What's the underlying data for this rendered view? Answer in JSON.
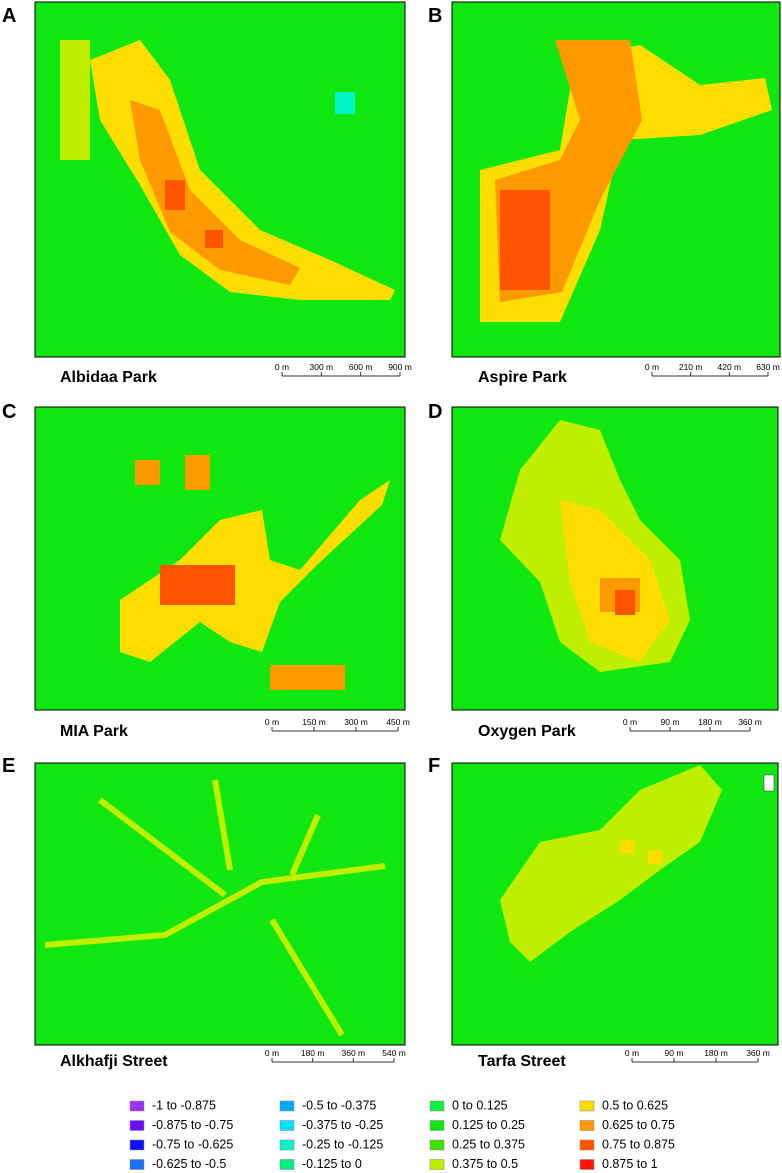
{
  "panels": [
    {
      "letter": "A",
      "name": "Albidaa Park",
      "scale": [
        "0 m",
        "300 m",
        "600 m",
        "900 m"
      ]
    },
    {
      "letter": "B",
      "name": "Aspire Park",
      "scale": [
        "0 m",
        "210 m",
        "420 m",
        "630 m"
      ]
    },
    {
      "letter": "C",
      "name": "MIA Park",
      "scale": [
        "0 m",
        "150 m",
        "300 m",
        "450 m"
      ]
    },
    {
      "letter": "D",
      "name": "Oxygen Park",
      "scale": [
        "0 m",
        "90 m",
        "180 m",
        "360 m"
      ]
    },
    {
      "letter": "E",
      "name": "Alkhafji Street",
      "scale": [
        "0 m",
        "180 m",
        "360 m",
        "540 m"
      ]
    },
    {
      "letter": "F",
      "name": "Tarfa Street",
      "scale": [
        "0 m",
        "90 m",
        "180 m",
        "360 m"
      ]
    }
  ],
  "legend": [
    {
      "label": "-1 to -0.875",
      "color": "#9b30ff"
    },
    {
      "label": "-0.875 to -0.75",
      "color": "#6a10ff"
    },
    {
      "label": "-0.75 to -0.625",
      "color": "#1010ff"
    },
    {
      "label": "-0.625 to -0.5",
      "color": "#1e6fff"
    },
    {
      "label": "-0.5 to -0.375",
      "color": "#00aaff"
    },
    {
      "label": "-0.375 to -0.25",
      "color": "#00e0ff"
    },
    {
      "label": "-0.25 to -0.125",
      "color": "#00f5c8"
    },
    {
      "label": "-0.125 to 0",
      "color": "#00ee80"
    },
    {
      "label": "0 to 0.125",
      "color": "#10f040"
    },
    {
      "label": "0.125 to 0.25",
      "color": "#10e610"
    },
    {
      "label": "0.25 to 0.375",
      "color": "#40e000"
    },
    {
      "label": "0.375 to 0.5",
      "color": "#c0ee00"
    },
    {
      "label": "0.5 to 0.625",
      "color": "#ffdd00"
    },
    {
      "label": "0.625 to 0.75",
      "color": "#ff9900"
    },
    {
      "label": "0.75 to 0.875",
      "color": "#ff5500"
    },
    {
      "label": "0.875 to 1",
      "color": "#ff1500"
    }
  ]
}
